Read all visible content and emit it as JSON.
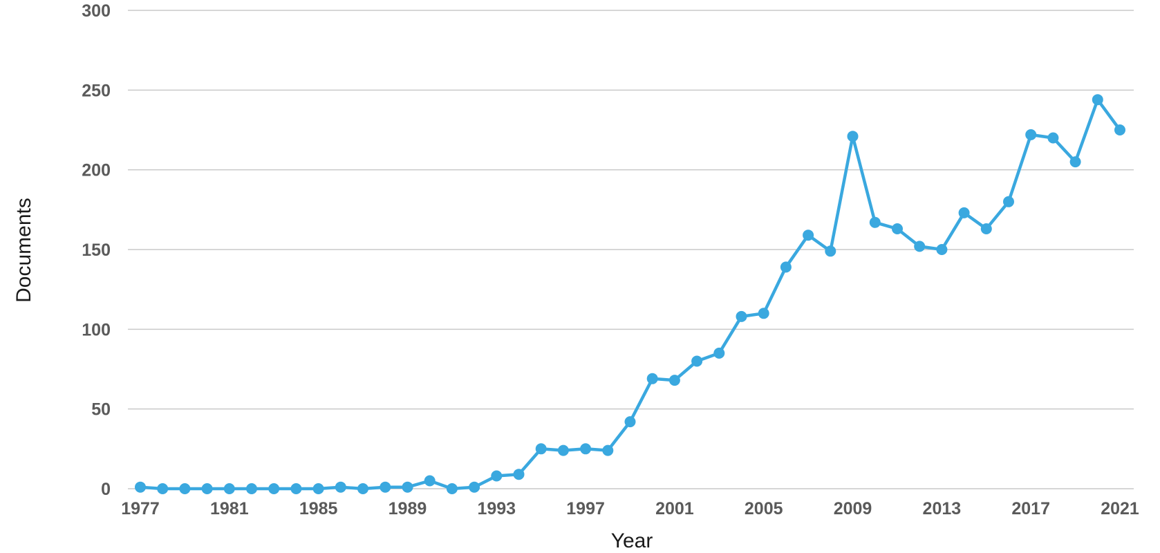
{
  "chart_data": {
    "type": "line",
    "title": "",
    "xlabel": "Year",
    "ylabel": "Documents",
    "xlim": [
      1977,
      2021
    ],
    "ylim": [
      0,
      300
    ],
    "x_tick_labels": [
      "1977",
      "1981",
      "1985",
      "1989",
      "1993",
      "1997",
      "2001",
      "2005",
      "2009",
      "2013",
      "2017",
      "2021"
    ],
    "y_tick_labels": [
      "0",
      "50",
      "100",
      "150",
      "200",
      "250",
      "300"
    ],
    "grid": "horizontal",
    "legend": "none",
    "colors": {
      "series": "#3aa8df",
      "grid": "#c9c9c9",
      "tick_text": "#5a5a5a",
      "axis_title": "#1a1a1a"
    },
    "series": [
      {
        "x": [
          1977,
          1978,
          1979,
          1980,
          1981,
          1982,
          1983,
          1984,
          1985,
          1986,
          1987,
          1988,
          1989,
          1990,
          1991,
          1992,
          1993,
          1994,
          1995,
          1996,
          1997,
          1998,
          1999,
          2000,
          2001,
          2002,
          2003,
          2004,
          2005,
          2006,
          2007,
          2008,
          2009,
          2010,
          2011,
          2012,
          2013,
          2014,
          2015,
          2016,
          2017,
          2018,
          2019,
          2020,
          2021
        ],
        "values": [
          1,
          0,
          0,
          0,
          0,
          0,
          0,
          0,
          0,
          1,
          0,
          1,
          1,
          5,
          0,
          1,
          8,
          9,
          25,
          24,
          25,
          24,
          42,
          69,
          68,
          80,
          85,
          108,
          110,
          139,
          159,
          149,
          221,
          167,
          163,
          152,
          150,
          173,
          163,
          180,
          222,
          220,
          205,
          244,
          225
        ]
      }
    ]
  }
}
